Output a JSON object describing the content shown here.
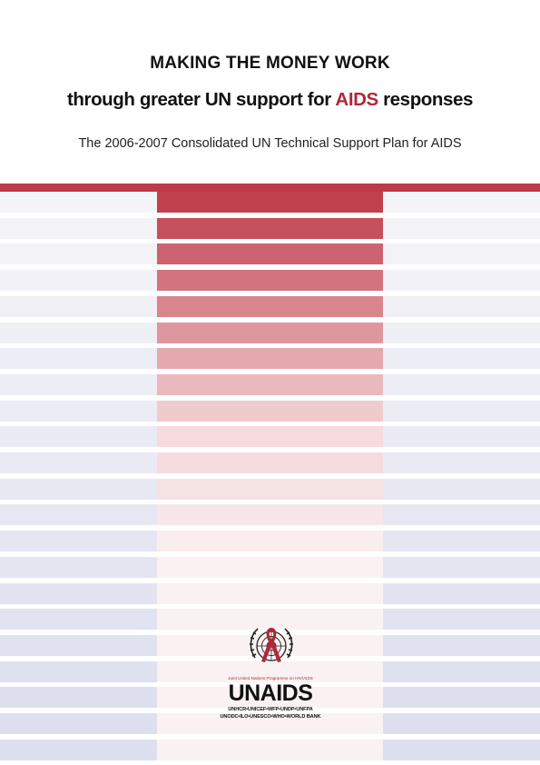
{
  "cover": {
    "title_line1": "MAKING THE MONEY WORK",
    "title_line2_before": "through greater UN support for ",
    "title_line2_accent": "AIDS",
    "title_line2_after": " responses",
    "subtitle": "The 2006-2007 Consolidated UN Technical Support Plan for AIDS"
  },
  "colors": {
    "accent": "#b0283a",
    "bar": "#c0394b"
  },
  "logo": {
    "emblem_icon": "un-emblem-with-red-ribbon-icon",
    "tagline": "Joint United Nations Programme on HIV/AIDS",
    "wordmark": "UNAIDS",
    "cosponsors_line1": "UNHCR•UNICEF•WFP•UNDP•UNFPA",
    "cosponsors_line2": "UNODC•ILO•UNESCO•WHO•WORLD BANK"
  }
}
